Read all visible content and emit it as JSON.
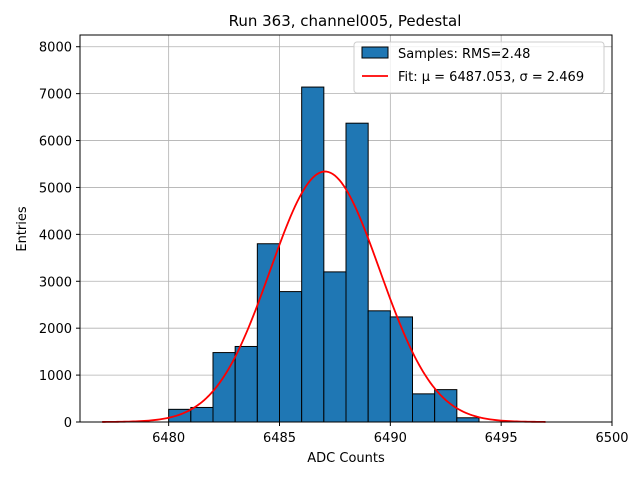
{
  "chart_data": {
    "type": "bar",
    "title": "Run 363, channel005, Pedestal",
    "xlabel": "ADC Counts",
    "ylabel": "Entries",
    "xlim": [
      6476,
      6500
    ],
    "ylim": [
      0,
      8250
    ],
    "grid": true,
    "xticks": [
      6480,
      6485,
      6490,
      6495,
      6500
    ],
    "yticks": [
      0,
      1000,
      2000,
      3000,
      4000,
      5000,
      6000,
      7000,
      8000
    ],
    "bin_edges": [
      6480,
      6481,
      6482,
      6483,
      6484,
      6485,
      6486,
      6487,
      6488,
      6489,
      6490,
      6491,
      6492,
      6493,
      6494
    ],
    "bin_counts": [
      270,
      310,
      1480,
      1610,
      3800,
      2780,
      7140,
      3200,
      6370,
      2370,
      2240,
      600,
      690,
      90
    ],
    "bar_color": "#1f77b4",
    "bar_edge_color": "#000000",
    "fit": {
      "mu": 6487.053,
      "sigma": 2.469,
      "amplitude": 5340,
      "x_range": [
        6477,
        6497
      ],
      "color": "#ff0000"
    },
    "legend": {
      "position": "top-right",
      "entries": [
        {
          "label": "Samples: RMS=2.48",
          "kind": "patch",
          "color": "#1f77b4"
        },
        {
          "label": "Fit: μ = 6487.053, σ = 2.469",
          "kind": "line",
          "color": "#ff0000"
        }
      ]
    }
  }
}
